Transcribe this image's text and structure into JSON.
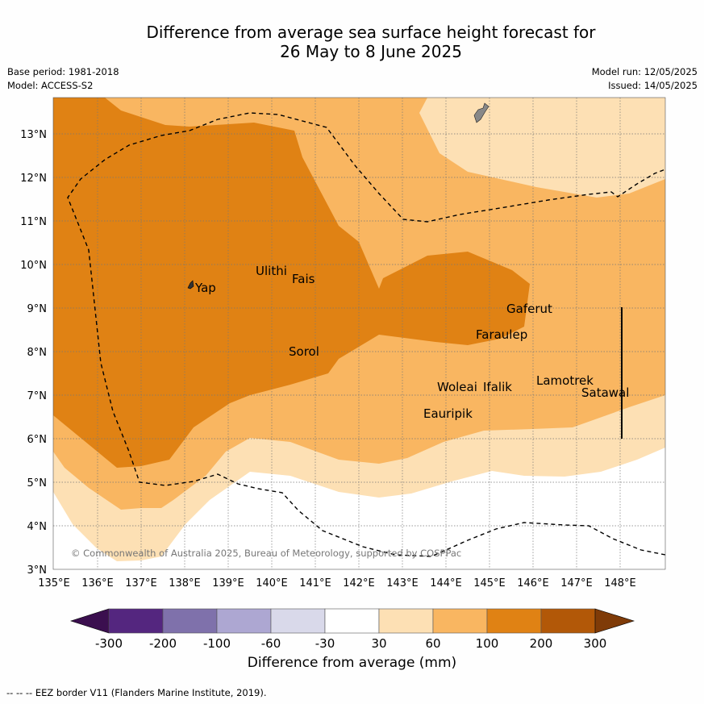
{
  "title": {
    "line1": "Difference from average sea surface height forecast for",
    "line2": "26 May to 8 June 2025"
  },
  "meta": {
    "base_period": "Base period: 1981-2018",
    "model": "Model: ACCESS-S2",
    "model_run": "Model run: 12/05/2025",
    "issued": "Issued: 14/05/2025"
  },
  "axes": {
    "lon_labels": [
      "135°E",
      "136°E",
      "137°E",
      "138°E",
      "139°E",
      "140°E",
      "141°E",
      "142°E",
      "143°E",
      "144°E",
      "145°E",
      "146°E",
      "147°E",
      "148°E"
    ],
    "lat_labels": [
      "3°N",
      "4°N",
      "5°N",
      "6°N",
      "7°N",
      "8°N",
      "9°N",
      "10°N",
      "11°N",
      "12°N",
      "13°N"
    ]
  },
  "places": [
    "Yap",
    "Ulithi",
    "Fais",
    "Sorol",
    "Gaferut",
    "Faraulep",
    "Woleai",
    "Ifalik",
    "Lamotrek",
    "Satawal",
    "Eauripik"
  ],
  "copyright": "© Commonwealth of Australia 2025, Bureau of Meteorology, supported by COSPPac",
  "colorbar": {
    "title": "Difference from average (mm)",
    "ticks": [
      "-300",
      "-200",
      "-100",
      "-60",
      "-30",
      "30",
      "60",
      "100",
      "200",
      "300"
    ],
    "colors": [
      "#3b0f4f",
      "#54267f",
      "#7f71ab",
      "#ada7d2",
      "#d9d9ea",
      "#ffffff",
      "#fde0b4",
      "#f9b661",
      "#e08214",
      "#b25808",
      "#7f3b08"
    ]
  },
  "footer": "--  --  -- EEZ border V11 (Flanders Marine Institute, 2019)."
}
